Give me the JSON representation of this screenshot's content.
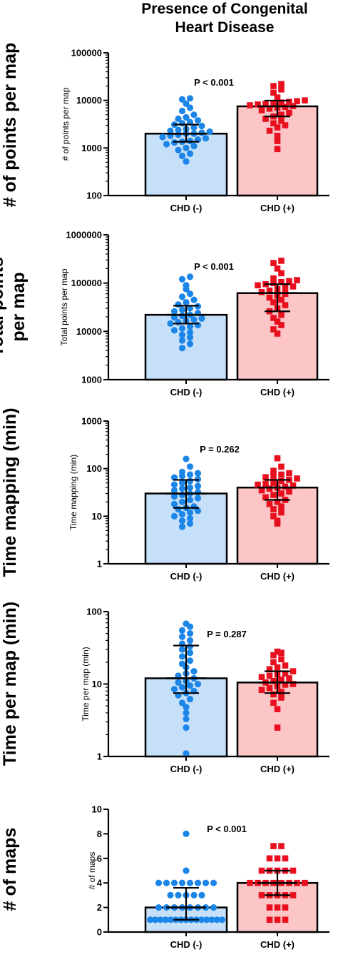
{
  "title": "Presence of Congenital Heart Disease",
  "colors": {
    "chd_neg_bar": "#c7e0fa",
    "chd_neg_point": "#1c86e8",
    "chd_pos_bar": "#fcc6c6",
    "chd_pos_point": "#e8101e",
    "axis": "#000000"
  },
  "chart_data": [
    {
      "type": "bar",
      "row_label": "# of points per map",
      "ylabel": "# of points per map",
      "scale": "log",
      "ylim": [
        100,
        100000
      ],
      "yticks": [
        100,
        1000,
        10000,
        100000
      ],
      "ytick_labels": [
        "100",
        "1000",
        "10000",
        "100000"
      ],
      "categories": [
        "CHD (-)",
        "CHD (+)"
      ],
      "p_value": "P < 0.001",
      "series": [
        {
          "values": [
            2000,
            7500
          ],
          "error": [
            [
              1350,
              3100
            ],
            [
              4600,
              9900
            ]
          ],
          "points": [
            [
              520,
              680,
              760,
              900,
              1000,
              1100,
              1200,
              1300,
              1350,
              1400,
              1500,
              1600,
              1700,
              1800,
              1900,
              2000,
              2000,
              2100,
              2200,
              2300,
              2400,
              2500,
              2700,
              2900,
              3100,
              3300,
              3500,
              3800,
              4100,
              4400,
              5000,
              6000,
              7000,
              8500,
              10500,
              11000
            ],
            [
              950,
              1400,
              1800,
              2300,
              2700,
              3000,
              3300,
              3700,
              4100,
              4600,
              5000,
              5500,
              6200,
              6700,
              7000,
              7300,
              7600,
              7900,
              8200,
              8500,
              8800,
              9000,
              9300,
              9600,
              10000,
              11500,
              14500,
              17000,
              20000,
              22000
            ]
          ]
        }
      ]
    },
    {
      "type": "bar",
      "row_label": "Total points per map",
      "ylabel": "Total points per map",
      "scale": "log",
      "ylim": [
        1000,
        1000000
      ],
      "yticks": [
        1000,
        10000,
        100000,
        1000000
      ],
      "ytick_labels": [
        "1000",
        "10000",
        "100000",
        "1000000"
      ],
      "categories": [
        "CHD (-)",
        "CHD (+)"
      ],
      "p_value": "P < 0.001",
      "series": [
        {
          "values": [
            22000,
            62000
          ],
          "error": [
            [
              14500,
              34000
            ],
            [
              26000,
              95000
            ]
          ],
          "points": [
            [
              4500,
              5500,
              6500,
              7500,
              8500,
              9500,
              10500,
              11500,
              12500,
              13500,
              14500,
              15500,
              16500,
              17500,
              18500,
              19500,
              21000,
              22000,
              24000,
              26000,
              28000,
              30000,
              33000,
              36000,
              40000,
              45000,
              52000,
              60000,
              75000,
              90000,
              120000,
              135000
            ],
            [
              9000,
              11000,
              13500,
              16000,
              19000,
              22000,
              26000,
              30000,
              35000,
              40000,
              45000,
              50000,
              55000,
              60000,
              65000,
              70000,
              75000,
              80000,
              85000,
              90000,
              95000,
              100000,
              105000,
              110000,
              115000,
              125000,
              160000,
              200000,
              260000,
              290000
            ]
          ]
        }
      ]
    },
    {
      "type": "bar",
      "row_label": "Time mapping (min)",
      "ylabel": "Time mapping (min)",
      "scale": "log",
      "ylim": [
        1,
        1000
      ],
      "yticks": [
        1,
        10,
        100,
        1000
      ],
      "ytick_labels": [
        "1",
        "10",
        "100",
        "1000"
      ],
      "categories": [
        "CHD (-)",
        "CHD (+)"
      ],
      "p_value": "P = 0.262",
      "series": [
        {
          "values": [
            30,
            40
          ],
          "error": [
            [
              15,
              58
            ],
            [
              22,
              58
            ]
          ],
          "points": [
            [
              6,
              7,
              8,
              9,
              10,
              11,
              12,
              13,
              14,
              15,
              16,
              18,
              20,
              22,
              24,
              26,
              28,
              30,
              32,
              35,
              38,
              40,
              43,
              46,
              50,
              55,
              60,
              65,
              70,
              75,
              80,
              85,
              110,
              160
            ],
            [
              7,
              8,
              10,
              12,
              14,
              16,
              18,
              20,
              22,
              25,
              28,
              30,
              33,
              35,
              38,
              40,
              42,
              44,
              46,
              48,
              50,
              55,
              58,
              62,
              66,
              70,
              75,
              80,
              90,
              110,
              165
            ]
          ]
        }
      ]
    },
    {
      "type": "bar",
      "row_label": "Time per map (min)",
      "ylabel": "Time per map (min)",
      "scale": "log",
      "ylim": [
        1,
        100
      ],
      "yticks": [
        1,
        10,
        100
      ],
      "ytick_labels": [
        "1",
        "10",
        "100"
      ],
      "categories": [
        "CHD (-)",
        "CHD (+)"
      ],
      "p_value": "P = 0.287",
      "series": [
        {
          "values": [
            12,
            10.5
          ],
          "error": [
            [
              7.5,
              34
            ],
            [
              7.5,
              15
            ]
          ],
          "points": [
            [
              1.1,
              2.5,
              3.3,
              4.0,
              4.8,
              5.5,
              6.2,
              7.0,
              7.5,
              8.0,
              8.5,
              9.0,
              9.5,
              10,
              10.5,
              11,
              12,
              13,
              14,
              15,
              17,
              19,
              21,
              24,
              27,
              30,
              33,
              36,
              40,
              45,
              50,
              55,
              62,
              68
            ],
            [
              2.5,
              4.5,
              5.5,
              6.5,
              7.2,
              7.8,
              8.3,
              8.8,
              9.3,
              9.8,
              10,
              10.5,
              11,
              11.5,
              12,
              12.5,
              13,
              13.5,
              14,
              15,
              16,
              17,
              18,
              20,
              22,
              25,
              27,
              28
            ]
          ]
        }
      ]
    },
    {
      "type": "bar",
      "row_label": "# of maps",
      "ylabel": "# of maps",
      "scale": "linear",
      "ylim": [
        0,
        10
      ],
      "yticks": [
        0,
        2,
        4,
        6,
        8,
        10
      ],
      "ytick_labels": [
        "0",
        "2",
        "4",
        "6",
        "8",
        "10"
      ],
      "categories": [
        "CHD (-)",
        "CHD (+)"
      ],
      "p_value": "P < 0.001",
      "series": [
        {
          "values": [
            2,
            4
          ],
          "error": [
            [
              1,
              3.6
            ],
            [
              3,
              5
            ]
          ],
          "points": [
            [
              1,
              1,
              1,
              1,
              1,
              1,
              1,
              1,
              1,
              1,
              1,
              1,
              1,
              1,
              1,
              2,
              2,
              2,
              2,
              2,
              2,
              2,
              2,
              3,
              3,
              3,
              3,
              3,
              4,
              4,
              4,
              4,
              4,
              4,
              4,
              4,
              5,
              8
            ],
            [
              1,
              1,
              1,
              2,
              2,
              2,
              3,
              3,
              3,
              3,
              3,
              4,
              4,
              4,
              4,
              4,
              4,
              4,
              4,
              5,
              5,
              5,
              5,
              5,
              6,
              6,
              6,
              7,
              7
            ]
          ]
        }
      ]
    }
  ]
}
